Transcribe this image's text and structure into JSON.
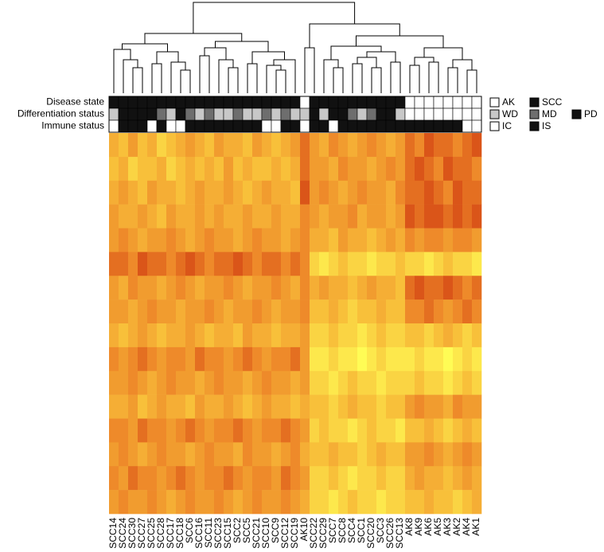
{
  "chart_data": {
    "type": "heatmap",
    "columns": [
      "SCC14",
      "SCC24",
      "SCC30",
      "SCC27",
      "SCC25",
      "SCC28",
      "SCC17",
      "SCC18",
      "SCC6",
      "SCC16",
      "SCC11",
      "SCC23",
      "SCC15",
      "SCC2",
      "SCC5",
      "SCC21",
      "SCC10",
      "SCC9",
      "SCC12",
      "SCC19",
      "AK10",
      "SCC22",
      "SCC29",
      "SCC7",
      "SCC8",
      "SCC4",
      "SCC1",
      "SCC20",
      "SCC3",
      "SCC26",
      "SCC13",
      "AK8",
      "AK9",
      "AK6",
      "AK5",
      "AK3",
      "AK2",
      "AK4",
      "AK1"
    ],
    "vlim": [
      0,
      9
    ],
    "colorscale": [
      "#fffc55",
      "#f8c03a",
      "#ee8a2a",
      "#d03a10"
    ],
    "values": [
      [
        4,
        3,
        5,
        3,
        4,
        2,
        3,
        4,
        5,
        4,
        3,
        5,
        4,
        4,
        3,
        5,
        4,
        3,
        4,
        5,
        7,
        5,
        4,
        6,
        5,
        4,
        5,
        6,
        5,
        4,
        5,
        7,
        6,
        8,
        7,
        7,
        6,
        7,
        8
      ],
      [
        3,
        4,
        2,
        3,
        3,
        4,
        2,
        3,
        4,
        3,
        4,
        3,
        5,
        3,
        4,
        3,
        3,
        4,
        3,
        4,
        7,
        5,
        5,
        4,
        6,
        5,
        5,
        4,
        5,
        6,
        5,
        7,
        8,
        7,
        6,
        8,
        7,
        7,
        6
      ],
      [
        4,
        5,
        4,
        3,
        5,
        4,
        4,
        3,
        4,
        5,
        4,
        4,
        5,
        4,
        3,
        4,
        5,
        4,
        4,
        3,
        8,
        5,
        6,
        5,
        4,
        5,
        6,
        5,
        5,
        4,
        6,
        7,
        7,
        8,
        7,
        6,
        8,
        7,
        7
      ],
      [
        5,
        4,
        4,
        5,
        4,
        3,
        5,
        4,
        4,
        5,
        4,
        5,
        4,
        4,
        5,
        4,
        4,
        5,
        4,
        4,
        6,
        5,
        4,
        5,
        5,
        6,
        4,
        5,
        5,
        4,
        5,
        8,
        7,
        8,
        8,
        7,
        8,
        7,
        8
      ],
      [
        5,
        6,
        5,
        4,
        5,
        5,
        6,
        5,
        4,
        5,
        6,
        5,
        5,
        4,
        5,
        6,
        5,
        5,
        4,
        5,
        6,
        4,
        4,
        3,
        5,
        4,
        4,
        3,
        4,
        5,
        4,
        6,
        5,
        6,
        6,
        5,
        6,
        6,
        5
      ],
      [
        7,
        7,
        6,
        8,
        7,
        7,
        6,
        7,
        8,
        7,
        6,
        7,
        7,
        8,
        7,
        6,
        7,
        7,
        6,
        7,
        6,
        2,
        1,
        2,
        3,
        2,
        2,
        1,
        2,
        2,
        3,
        2,
        2,
        1,
        2,
        3,
        2,
        2,
        1
      ],
      [
        5,
        4,
        6,
        5,
        5,
        4,
        5,
        6,
        5,
        4,
        5,
        5,
        6,
        5,
        4,
        5,
        5,
        6,
        5,
        4,
        6,
        4,
        5,
        4,
        4,
        3,
        4,
        5,
        4,
        4,
        3,
        7,
        8,
        7,
        7,
        8,
        7,
        6,
        7
      ],
      [
        5,
        5,
        4,
        5,
        6,
        5,
        5,
        4,
        5,
        5,
        6,
        5,
        4,
        5,
        5,
        6,
        5,
        4,
        5,
        5,
        6,
        3,
        3,
        4,
        3,
        2,
        3,
        3,
        4,
        3,
        3,
        6,
        6,
        7,
        6,
        5,
        6,
        7,
        6
      ],
      [
        4,
        3,
        4,
        5,
        4,
        3,
        4,
        4,
        5,
        4,
        3,
        4,
        4,
        3,
        5,
        4,
        4,
        3,
        4,
        4,
        5,
        2,
        2,
        3,
        2,
        2,
        1,
        2,
        3,
        2,
        2,
        3,
        3,
        2,
        3,
        4,
        3,
        2,
        3
      ],
      [
        6,
        5,
        6,
        7,
        6,
        5,
        6,
        6,
        5,
        7,
        6,
        6,
        5,
        6,
        7,
        6,
        5,
        6,
        6,
        7,
        5,
        1,
        1,
        2,
        1,
        1,
        0,
        1,
        2,
        1,
        1,
        1,
        2,
        1,
        1,
        0,
        1,
        2,
        1
      ],
      [
        5,
        5,
        6,
        5,
        4,
        5,
        6,
        5,
        5,
        4,
        5,
        6,
        5,
        5,
        4,
        5,
        6,
        5,
        5,
        4,
        5,
        2,
        2,
        1,
        2,
        3,
        2,
        2,
        1,
        2,
        2,
        2,
        3,
        2,
        2,
        1,
        2,
        3,
        2
      ],
      [
        4,
        4,
        5,
        3,
        4,
        5,
        4,
        4,
        3,
        5,
        4,
        4,
        5,
        4,
        3,
        4,
        5,
        4,
        4,
        3,
        4,
        3,
        3,
        2,
        3,
        4,
        3,
        3,
        2,
        3,
        3,
        5,
        6,
        5,
        5,
        4,
        6,
        5,
        5
      ],
      [
        6,
        6,
        5,
        7,
        6,
        6,
        5,
        6,
        7,
        6,
        5,
        6,
        6,
        7,
        6,
        5,
        6,
        6,
        7,
        6,
        5,
        2,
        3,
        2,
        2,
        1,
        2,
        3,
        2,
        2,
        1,
        3,
        3,
        4,
        3,
        2,
        3,
        4,
        3
      ],
      [
        5,
        6,
        5,
        4,
        5,
        6,
        5,
        5,
        4,
        5,
        6,
        5,
        5,
        4,
        6,
        5,
        5,
        4,
        5,
        6,
        4,
        3,
        3,
        4,
        3,
        3,
        2,
        3,
        4,
        3,
        3,
        5,
        5,
        6,
        5,
        4,
        5,
        6,
        5
      ],
      [
        6,
        5,
        7,
        6,
        6,
        5,
        6,
        7,
        6,
        5,
        6,
        6,
        7,
        6,
        5,
        6,
        6,
        5,
        7,
        6,
        5,
        2,
        2,
        3,
        2,
        1,
        2,
        2,
        3,
        2,
        2,
        4,
        5,
        4,
        4,
        3,
        4,
        5,
        4
      ],
      [
        5,
        6,
        5,
        5,
        6,
        5,
        4,
        5,
        6,
        5,
        5,
        6,
        5,
        4,
        5,
        6,
        5,
        5,
        6,
        5,
        4,
        2,
        2,
        1,
        2,
        3,
        2,
        2,
        1,
        2,
        2,
        3,
        3,
        4,
        3,
        3,
        2,
        3,
        4
      ]
    ],
    "annotations": [
      {
        "name": "Disease state",
        "legend": [
          {
            "label": "AK",
            "color": "#ffffff"
          },
          {
            "label": "SCC",
            "color": "#111111"
          }
        ],
        "values": [
          "SCC",
          "SCC",
          "SCC",
          "SCC",
          "SCC",
          "SCC",
          "SCC",
          "SCC",
          "SCC",
          "SCC",
          "SCC",
          "SCC",
          "SCC",
          "SCC",
          "SCC",
          "SCC",
          "SCC",
          "SCC",
          "SCC",
          "SCC",
          "AK",
          "SCC",
          "SCC",
          "SCC",
          "SCC",
          "SCC",
          "SCC",
          "SCC",
          "SCC",
          "SCC",
          "SCC",
          "AK",
          "AK",
          "AK",
          "AK",
          "AK",
          "AK",
          "AK",
          "AK"
        ]
      },
      {
        "name": "Differentiation status",
        "legend": [
          {
            "label": "WD",
            "color": "#c8c8c8"
          },
          {
            "label": "MD",
            "color": "#6e6e6e"
          },
          {
            "label": "PD",
            "color": "#111111"
          }
        ],
        "values": [
          "WD",
          "PD",
          "PD",
          "PD",
          "PD",
          "MD",
          "WD",
          "PD",
          "MD",
          "WD",
          "MD",
          "WD",
          "WD",
          "MD",
          "WD",
          "WD",
          "MD",
          "WD",
          "MD",
          "WD",
          "WD",
          "PD",
          "WD",
          "PD",
          "PD",
          "MD",
          "WD",
          "MD",
          "PD",
          "PD",
          "WD",
          null,
          null,
          null,
          null,
          null,
          null,
          null,
          null
        ]
      },
      {
        "name": "Immune status",
        "legend": [
          {
            "label": "IC",
            "color": "#ffffff"
          },
          {
            "label": "IS",
            "color": "#111111"
          }
        ],
        "values": [
          "IC",
          "IS",
          "IS",
          "IS",
          "IC",
          "IS",
          "IC",
          "IC",
          "IS",
          "IS",
          "IS",
          "IS",
          "IS",
          "IS",
          "IS",
          "IS",
          "IC",
          "IC",
          "IS",
          "IS",
          "IC",
          "IS",
          "IS",
          "IC",
          "IS",
          "IS",
          "IS",
          "IS",
          "IS",
          "IS",
          "IS",
          "IS",
          "IS",
          "IS",
          "IS",
          "IS",
          "IS",
          "IC",
          "IC"
        ]
      }
    ]
  }
}
